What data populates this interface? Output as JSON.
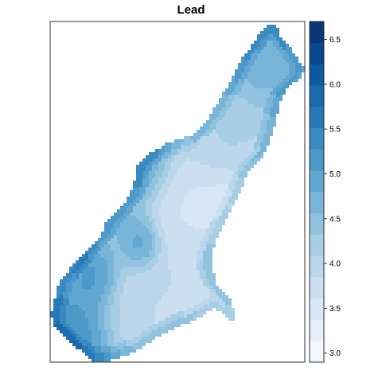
{
  "chart_data": {
    "type": "heatmap",
    "title": "Lead",
    "xlabel": "",
    "ylabel": "",
    "colorbar": {
      "min": 2.9,
      "max": 6.7,
      "ticks": [
        3.0,
        3.5,
        4.0,
        4.5,
        5.0,
        5.5,
        6.0,
        6.5
      ],
      "tick_labels": [
        "3.0",
        "3.5",
        "4.0",
        "4.5",
        "5.0",
        "5.5",
        "6.0",
        "6.5"
      ],
      "n_bins": 16,
      "color_low": "#f7fbff",
      "color_high": "#08306b",
      "placement": "right"
    },
    "grid": false,
    "region_description": "interpolated lead concentration map over a river floodplain area",
    "blobs": [
      {
        "u": 0.07,
        "v": 0.93,
        "value": 5.6,
        "r": 0.12
      },
      {
        "u": 0.16,
        "v": 0.74,
        "value": 5.4,
        "r": 0.08
      },
      {
        "u": 0.52,
        "v": 0.12,
        "value": 5.4,
        "r": 0.09
      },
      {
        "u": 0.35,
        "v": 0.4,
        "value": 5.3,
        "r": 0.1
      },
      {
        "u": 0.83,
        "v": 0.08,
        "value": 5.0,
        "r": 0.14
      },
      {
        "u": 0.25,
        "v": 0.55,
        "value": 4.8,
        "r": 0.1
      },
      {
        "u": 0.7,
        "v": 0.68,
        "value": 4.0,
        "r": 0.12
      },
      {
        "u": 0.55,
        "v": 0.55,
        "value": 3.5,
        "r": 0.12
      },
      {
        "u": 0.7,
        "v": 0.55,
        "value": 3.2,
        "r": 0.1
      },
      {
        "u": 0.4,
        "v": 0.86,
        "value": 3.8,
        "r": 0.12
      },
      {
        "u": 0.35,
        "v": 0.65,
        "value": 5.2,
        "r": 0.06
      },
      {
        "u": 0.68,
        "v": 0.35,
        "value": 4.2,
        "r": 0.12
      }
    ]
  }
}
